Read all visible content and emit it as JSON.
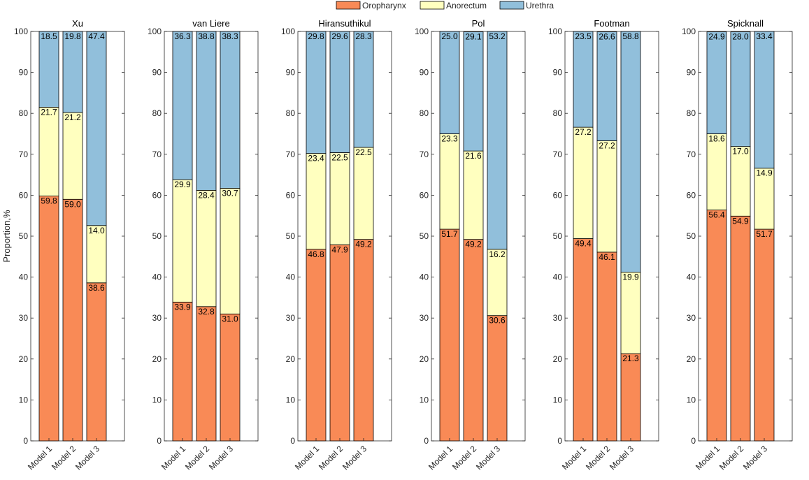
{
  "legend": {
    "items": [
      {
        "label": "Oropharynx",
        "color": "#F98A56"
      },
      {
        "label": "Anorectum",
        "color": "#FFFFBF"
      },
      {
        "label": "Urethra",
        "color": "#91BFDB"
      }
    ]
  },
  "ylabel": "Proportion,%",
  "chart_data": [
    {
      "type": "bar",
      "stacked": true,
      "title": "Xu",
      "categories": [
        "Model 1",
        "Model 2",
        "Model 3"
      ],
      "ylim": [
        0,
        100
      ],
      "yticks": [
        "0",
        "10",
        "20",
        "30",
        "40",
        "50",
        "60",
        "70",
        "80",
        "90",
        "100"
      ],
      "series": [
        {
          "name": "Oropharynx",
          "values": [
            59.8,
            59.0,
            38.6
          ],
          "labels": [
            "59.8",
            "59.0",
            "38.6"
          ]
        },
        {
          "name": "Anorectum",
          "values": [
            21.7,
            21.2,
            14.0
          ],
          "labels": [
            "21.7",
            "21.2",
            "14.0"
          ]
        },
        {
          "name": "Urethra",
          "values": [
            18.5,
            19.8,
            47.4
          ],
          "labels": [
            "18.5",
            "19.8",
            "47.4"
          ]
        }
      ]
    },
    {
      "type": "bar",
      "stacked": true,
      "title": "van Liere",
      "categories": [
        "Model 1",
        "Model 2",
        "Model 3"
      ],
      "ylim": [
        0,
        100
      ],
      "yticks": [
        "0",
        "10",
        "20",
        "30",
        "40",
        "50",
        "60",
        "70",
        "80",
        "90",
        "100"
      ],
      "series": [
        {
          "name": "Oropharynx",
          "values": [
            33.9,
            32.8,
            31.0
          ],
          "labels": [
            "33.9",
            "32.8",
            "31.0"
          ]
        },
        {
          "name": "Anorectum",
          "values": [
            29.9,
            28.4,
            30.7
          ],
          "labels": [
            "29.9",
            "28.4",
            "30.7"
          ]
        },
        {
          "name": "Urethra",
          "values": [
            36.3,
            38.8,
            38.3
          ],
          "labels": [
            "36.3",
            "38.8",
            "38.3"
          ]
        }
      ]
    },
    {
      "type": "bar",
      "stacked": true,
      "title": "Hiransuthikul",
      "categories": [
        "Model 1",
        "Model 2",
        "Model 3"
      ],
      "ylim": [
        0,
        100
      ],
      "yticks": [
        "0",
        "10",
        "20",
        "30",
        "40",
        "50",
        "60",
        "70",
        "80",
        "90",
        "100"
      ],
      "series": [
        {
          "name": "Oropharynx",
          "values": [
            46.8,
            47.9,
            49.2
          ],
          "labels": [
            "46.8",
            "47.9",
            "49.2"
          ]
        },
        {
          "name": "Anorectum",
          "values": [
            23.4,
            22.5,
            22.5
          ],
          "labels": [
            "23.4",
            "22.5",
            "22.5"
          ]
        },
        {
          "name": "Urethra",
          "values": [
            29.8,
            29.6,
            28.3
          ],
          "labels": [
            "29.8",
            "29.6",
            "28.3"
          ]
        }
      ]
    },
    {
      "type": "bar",
      "stacked": true,
      "title": "Pol",
      "categories": [
        "Model 1",
        "Model 2",
        "Model 3"
      ],
      "ylim": [
        0,
        100
      ],
      "yticks": [
        "0",
        "10",
        "20",
        "30",
        "40",
        "50",
        "60",
        "70",
        "80",
        "90",
        "100"
      ],
      "series": [
        {
          "name": "Oropharynx",
          "values": [
            51.7,
            49.2,
            30.6
          ],
          "labels": [
            "51.7",
            "49.2",
            "30.6"
          ]
        },
        {
          "name": "Anorectum",
          "values": [
            23.3,
            21.6,
            16.2
          ],
          "labels": [
            "23.3",
            "21.6",
            "16.2"
          ]
        },
        {
          "name": "Urethra",
          "values": [
            25.0,
            29.1,
            53.2
          ],
          "labels": [
            "25.0",
            "29.1",
            "53.2"
          ]
        }
      ]
    },
    {
      "type": "bar",
      "stacked": true,
      "title": "Footman",
      "categories": [
        "Model 1",
        "Model 2",
        "Model 3"
      ],
      "ylim": [
        0,
        100
      ],
      "yticks": [
        "0",
        "10",
        "20",
        "30",
        "40",
        "50",
        "60",
        "70",
        "80",
        "90",
        "100"
      ],
      "series": [
        {
          "name": "Oropharynx",
          "values": [
            49.4,
            46.1,
            21.3
          ],
          "labels": [
            "49.4",
            "46.1",
            "21.3"
          ]
        },
        {
          "name": "Anorectum",
          "values": [
            27.2,
            27.2,
            19.9
          ],
          "labels": [
            "27.2",
            "27.2",
            "19.9"
          ]
        },
        {
          "name": "Urethra",
          "values": [
            23.5,
            26.6,
            58.8
          ],
          "labels": [
            "23.5",
            "26.6",
            "58.8"
          ]
        }
      ]
    },
    {
      "type": "bar",
      "stacked": true,
      "title": "Spicknall",
      "categories": [
        "Model 1",
        "Model 2",
        "Model 3"
      ],
      "ylim": [
        0,
        100
      ],
      "yticks": [
        "0",
        "10",
        "20",
        "30",
        "40",
        "50",
        "60",
        "70",
        "80",
        "90",
        "100"
      ],
      "series": [
        {
          "name": "Oropharynx",
          "values": [
            56.4,
            54.9,
            51.7
          ],
          "labels": [
            "56.4",
            "54.9",
            "51.7"
          ]
        },
        {
          "name": "Anorectum",
          "values": [
            18.6,
            17.0,
            14.9
          ],
          "labels": [
            "18.6",
            "17.0",
            "14.9"
          ]
        },
        {
          "name": "Urethra",
          "values": [
            24.9,
            28.0,
            33.4
          ],
          "labels": [
            "24.9",
            "28.0",
            "33.4"
          ]
        }
      ]
    }
  ]
}
